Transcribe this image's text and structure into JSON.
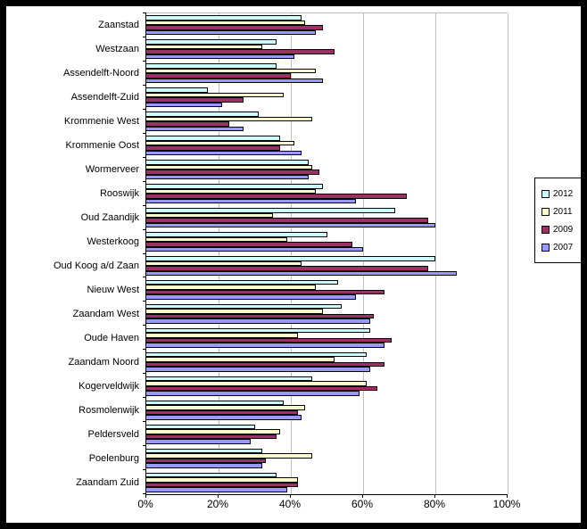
{
  "window": {
    "background_color": "#FFFFFF",
    "border_color": "#000000"
  },
  "chart_data": {
    "type": "bar",
    "orientation": "horizontal",
    "title": "",
    "xlabel": "",
    "ylabel": "",
    "xlim": [
      0,
      100
    ],
    "x_ticks": [
      "0%",
      "20%",
      "40%",
      "60%",
      "80%",
      "100%"
    ],
    "x_tick_values": [
      0,
      20,
      40,
      60,
      80,
      100
    ],
    "grid": "vertical",
    "gridline_color": "#C0C0C0",
    "bar_border_color": "#000000",
    "legend_position": "right",
    "categories": [
      "Zaanstad",
      "Westzaan",
      "Assendelft-Noord",
      "Assendelft-Zuid",
      "Krommenie West",
      "Krommenie Oost",
      "Wormerveer",
      "Rooswijk",
      "Oud Zaandijk",
      "Westerkoog",
      "Oud Koog a/d Zaan",
      "Nieuw West",
      "Zaandam West",
      "Oude Haven",
      "Zaandam Noord",
      "Kogerveldwijk",
      "Rosmolenwijk",
      "Peldersveld",
      "Poelenburg",
      "Zaandam Zuid"
    ],
    "series": [
      {
        "name": "2012",
        "color": "#CCFFFF",
        "values": [
          43,
          36,
          36,
          17,
          31,
          37,
          45,
          49,
          69,
          50,
          80,
          53,
          54,
          62,
          61,
          46,
          38,
          30,
          32,
          36
        ]
      },
      {
        "name": "2011",
        "color": "#FFFFCC",
        "values": [
          44,
          32,
          47,
          38,
          46,
          41,
          46,
          47,
          35,
          39,
          43,
          47,
          49,
          42,
          52,
          61,
          44,
          37,
          46,
          42
        ]
      },
      {
        "name": "2009",
        "color": "#993366",
        "values": [
          49,
          52,
          40,
          27,
          23,
          37,
          48,
          72,
          78,
          57,
          78,
          66,
          63,
          68,
          66,
          64,
          42,
          36,
          33,
          42
        ]
      },
      {
        "name": "2007",
        "color": "#9999FF",
        "values": [
          47,
          41,
          49,
          21,
          27,
          43,
          45,
          58,
          80,
          60,
          86,
          58,
          62,
          66,
          62,
          59,
          43,
          29,
          32,
          39
        ]
      }
    ]
  }
}
